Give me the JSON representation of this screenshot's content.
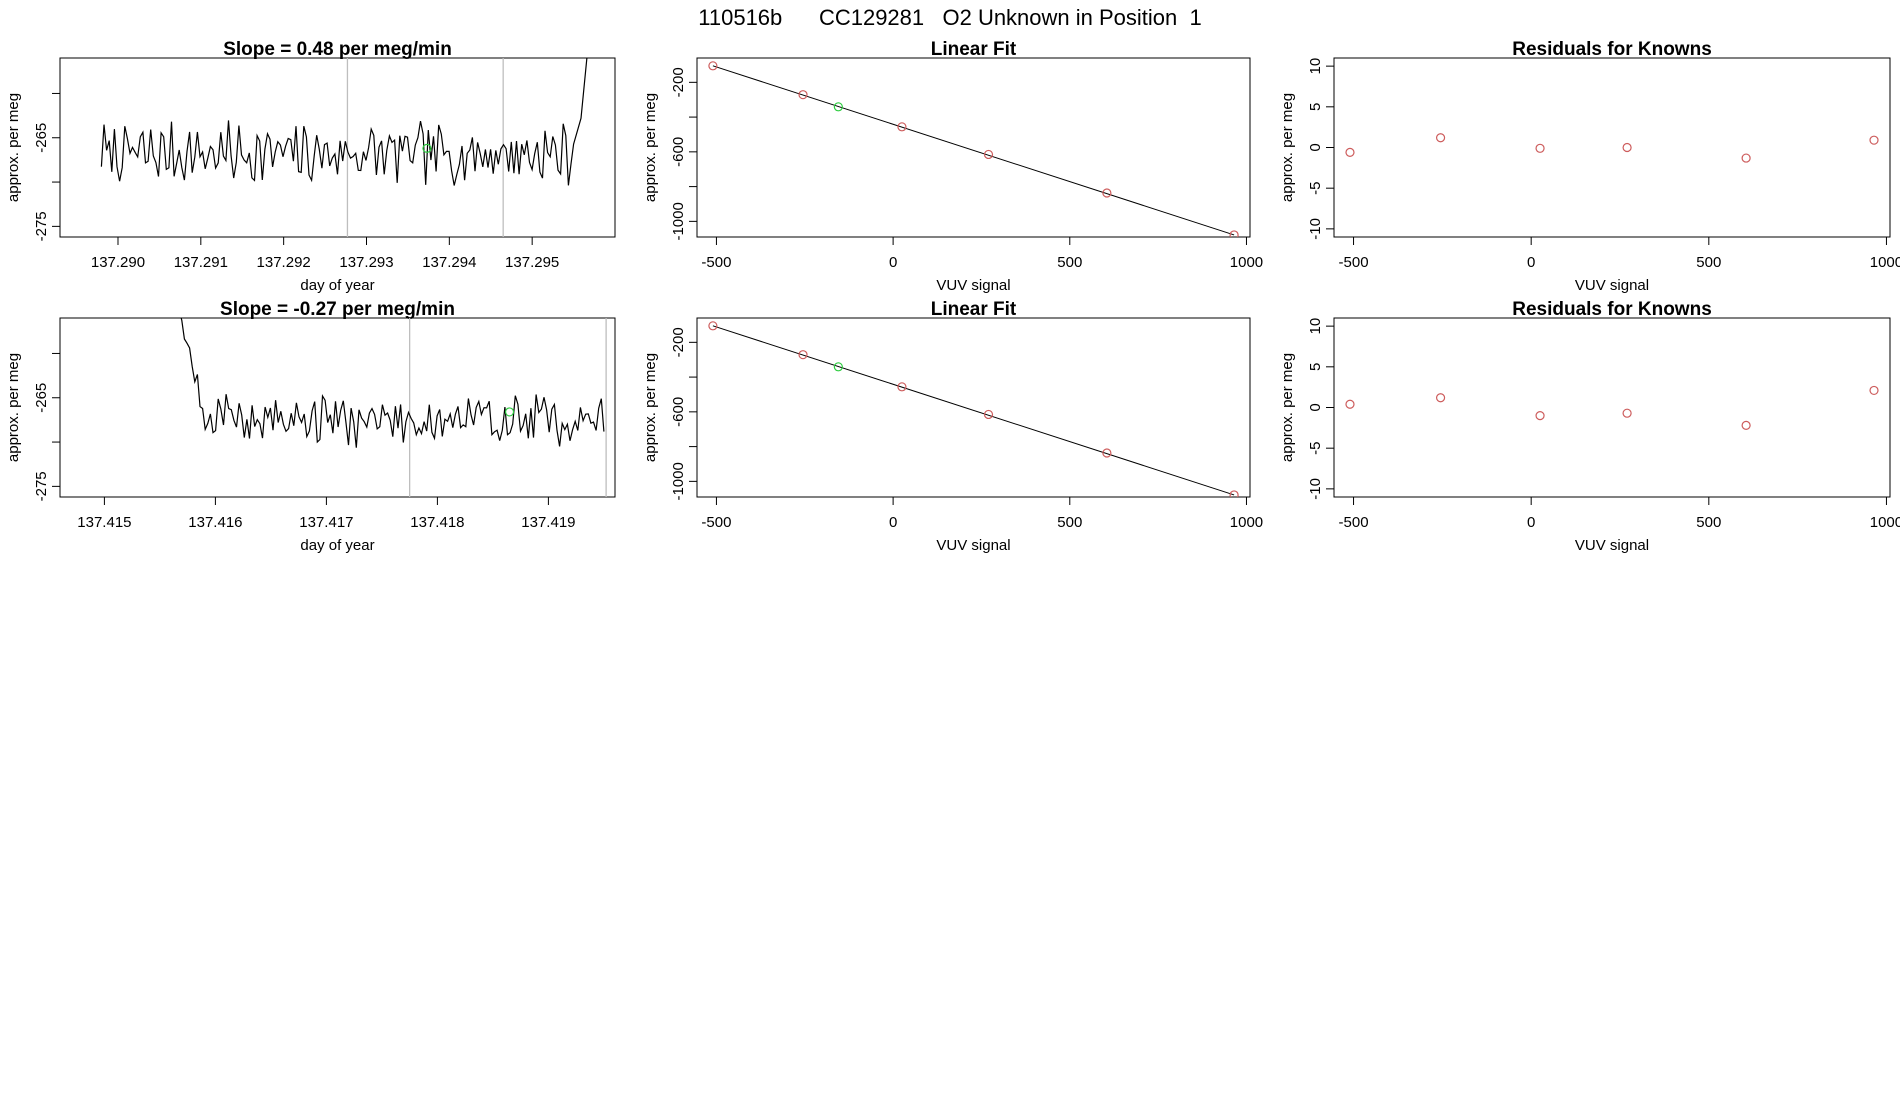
{
  "figure": {
    "title": "110516b      CC129281   O2 Unknown in Position  1"
  },
  "colors": {
    "line": "#000000",
    "known_point": "#cd5c5c",
    "unknown_point": "#2ecc40",
    "vline": "#bebebe",
    "frame": "#000000"
  },
  "chart_data": [
    {
      "id": "ts-1",
      "type": "line",
      "title": "Slope =  0.48  per meg/min",
      "xlabel": "day of year",
      "ylabel": "approx. per meg",
      "xlim": [
        137.2893,
        137.296
      ],
      "ylim": [
        -276.2,
        -256.0
      ],
      "xticks": [
        "137.290",
        "137.291",
        "137.292",
        "137.293",
        "137.294",
        "137.295"
      ],
      "yticks": [
        "-265",
        "-275"
      ],
      "ytick_marks": [
        -260,
        -265,
        -270,
        -275
      ],
      "vlines": [
        137.29277,
        137.29465
      ],
      "trace": {
        "x_start": 137.2898,
        "x_end": 137.2955,
        "baseline": -266.8,
        "amplitude": 2.8,
        "seed": 7,
        "tail_to": -245
      },
      "unknown_point": {
        "x": 137.29373,
        "y": -266.2
      }
    },
    {
      "id": "fit-1",
      "type": "scatter",
      "title": "Linear Fit",
      "xlabel": "VUV signal",
      "ylabel": "approx. per meg",
      "xlim": [
        -555,
        1010
      ],
      "ylim": [
        -1090,
        -60
      ],
      "xticks": [
        "-500",
        "0",
        "500",
        "1000"
      ],
      "yticks": [
        "-200",
        "-600",
        "-1000"
      ],
      "ytick_marks": [
        0,
        -200,
        -400,
        -600,
        -800,
        -1000
      ],
      "fit_line": {
        "x": [
          -510,
          965
        ],
        "y": [
          -105,
          -1078
        ]
      },
      "known_points": {
        "x": [
          -510,
          -255,
          25,
          270,
          605,
          965
        ],
        "y": [
          -105,
          -271,
          -456,
          -615,
          -837,
          -1078
        ]
      },
      "unknown_point": {
        "x": -155,
        "y": -341
      }
    },
    {
      "id": "res-1",
      "type": "scatter",
      "title": "Residuals for Knowns",
      "xlabel": "VUV signal",
      "ylabel": "approx. per meg",
      "xlim": [
        -555,
        1010
      ],
      "ylim": [
        -11,
        11
      ],
      "xticks": [
        "-500",
        "0",
        "500",
        "1000"
      ],
      "yticks": [
        "10",
        "5",
        "0",
        "-5",
        "-10"
      ],
      "ytick_marks": [
        10,
        5,
        0,
        -5,
        -10
      ],
      "known_points": {
        "x": [
          -510,
          -255,
          25,
          270,
          605,
          965
        ],
        "y": [
          -0.6,
          1.2,
          -0.1,
          0.0,
          -1.3,
          0.9
        ]
      }
    },
    {
      "id": "ts-2",
      "type": "line",
      "title": "Slope =  -0.27  per meg/min",
      "xlabel": "day of year",
      "ylabel": "approx. per meg",
      "xlim": [
        137.4146,
        137.4196
      ],
      "ylim": [
        -276.2,
        -256.0
      ],
      "xticks": [
        "137.415",
        "137.416",
        "137.417",
        "137.418",
        "137.419"
      ],
      "yticks": [
        "-265",
        "-275"
      ],
      "ytick_marks": [
        -260,
        -265,
        -270,
        -275
      ],
      "vlines": [
        137.41775,
        137.41952
      ],
      "trace": {
        "x_start": 137.41565,
        "x_end": 137.4195,
        "baseline": -267.5,
        "amplitude": 2.4,
        "seed": 19,
        "head_from": -254
      },
      "unknown_point": {
        "x": 137.41865,
        "y": -266.6
      }
    },
    {
      "id": "fit-2",
      "type": "scatter",
      "title": "Linear Fit",
      "xlabel": "VUV signal",
      "ylabel": "approx. per meg",
      "xlim": [
        -555,
        1010
      ],
      "ylim": [
        -1090,
        -60
      ],
      "xticks": [
        "-500",
        "0",
        "500",
        "1000"
      ],
      "yticks": [
        "-200",
        "-600",
        "-1000"
      ],
      "ytick_marks": [
        0,
        -200,
        -400,
        -600,
        -800,
        -1000
      ],
      "fit_line": {
        "x": [
          -510,
          965
        ],
        "y": [
          -105,
          -1078
        ]
      },
      "known_points": {
        "x": [
          -510,
          -255,
          25,
          270,
          605,
          965
        ],
        "y": [
          -105,
          -271,
          -456,
          -615,
          -837,
          -1078
        ]
      },
      "unknown_point": {
        "x": -155,
        "y": -341
      }
    },
    {
      "id": "res-2",
      "type": "scatter",
      "title": "Residuals for Knowns",
      "xlabel": "VUV signal",
      "ylabel": "approx. per meg",
      "xlim": [
        -555,
        1010
      ],
      "ylim": [
        -11,
        11
      ],
      "xticks": [
        "-500",
        "0",
        "500",
        "1000"
      ],
      "yticks": [
        "10",
        "5",
        "0",
        "-5",
        "-10"
      ],
      "ytick_marks": [
        10,
        5,
        0,
        -5,
        -10
      ],
      "known_points": {
        "x": [
          -510,
          -255,
          25,
          270,
          605,
          965
        ],
        "y": [
          0.4,
          1.2,
          -1.0,
          -0.7,
          -2.2,
          2.1
        ]
      }
    }
  ]
}
